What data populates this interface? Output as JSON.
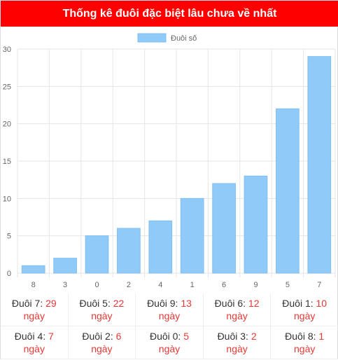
{
  "header": {
    "title": "Thống kê đuôi đặc biệt lâu chưa về nhất"
  },
  "chart_data": {
    "type": "bar",
    "categories": [
      "8",
      "3",
      "0",
      "2",
      "4",
      "1",
      "6",
      "9",
      "5",
      "7"
    ],
    "series": [
      {
        "name": "Đuôi số",
        "values": [
          1,
          2,
          5,
          6,
          7,
          10,
          12,
          13,
          22,
          29
        ],
        "color": "#90caf9"
      }
    ],
    "ylim": [
      0,
      30
    ],
    "yticks": [
      0,
      5,
      10,
      15,
      20,
      25,
      30
    ],
    "grid": true,
    "legend": "top-center"
  },
  "stats": [
    {
      "label": "Đuôi 7: ",
      "value": "29",
      "unit": "ngày"
    },
    {
      "label": "Đuôi 5: ",
      "value": "22",
      "unit": "ngày"
    },
    {
      "label": "Đuôi 9: ",
      "value": "13",
      "unit": "ngày"
    },
    {
      "label": "Đuôi 6: ",
      "value": "12",
      "unit": "ngày"
    },
    {
      "label": "Đuôi 1: ",
      "value": "10",
      "unit": "ngày"
    },
    {
      "label": "Đuôi 4: ",
      "value": "7",
      "unit": "ngày"
    },
    {
      "label": "Đuôi 2: ",
      "value": "6",
      "unit": "ngày"
    },
    {
      "label": "Đuôi 0: ",
      "value": "5",
      "unit": "ngày"
    },
    {
      "label": "Đuôi 3: ",
      "value": "2",
      "unit": "ngày"
    },
    {
      "label": "Đuôi 8: ",
      "value": "1",
      "unit": "ngày"
    }
  ]
}
